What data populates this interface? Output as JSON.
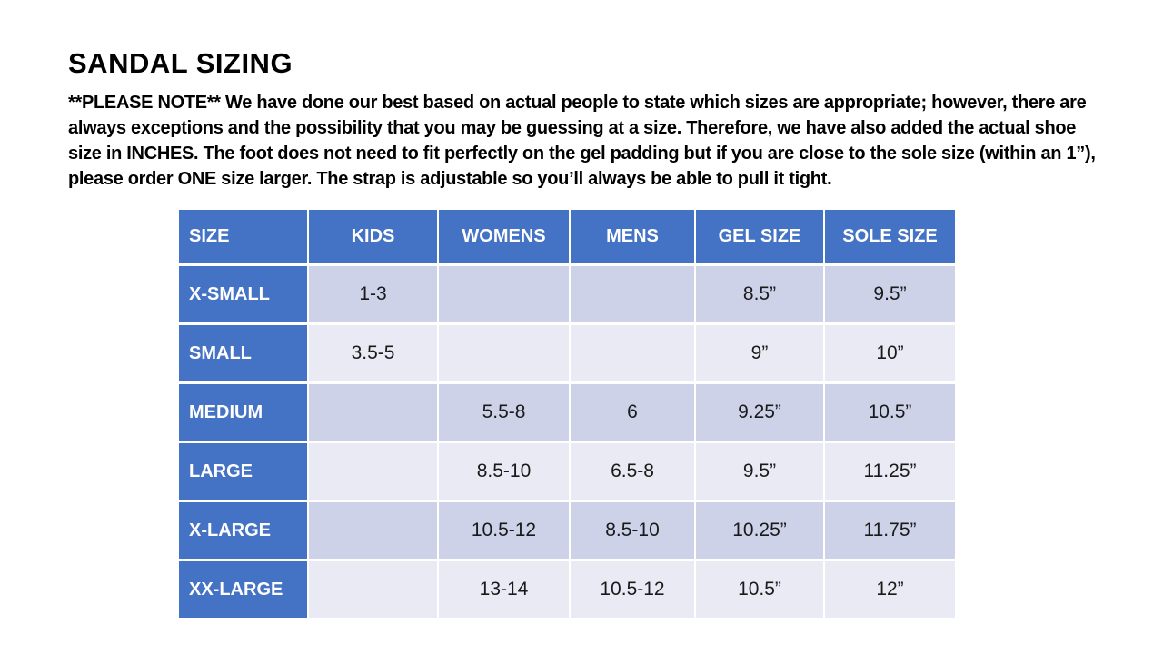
{
  "title": "SANDAL SIZING",
  "note": {
    "lines": [
      "**PLEASE NOTE**  We have done our best based on actual people to state which sizes are appropriate; however, there are",
      "always exceptions and the possibility that you may be guessing at a size.  Therefore, we have also added the actual shoe",
      "size in INCHES.  The foot does not need to fit perfectly on the gel padding but if you are close to the sole size (within an 1”),",
      "please order ONE size larger.  The strap is adjustable so you’ll always be able to pull it tight."
    ]
  },
  "table": {
    "headers": [
      "SIZE",
      "KIDS",
      "WOMENS",
      "MENS",
      "GEL SIZE",
      "SOLE SIZE"
    ],
    "rows": [
      [
        "X-SMALL",
        "1-3",
        "",
        "",
        "8.5”",
        "9.5”"
      ],
      [
        "SMALL",
        "3.5-5",
        "",
        "",
        "9”",
        "10”"
      ],
      [
        "MEDIUM",
        "",
        "5.5-8",
        "6",
        "9.25”",
        "10.5”"
      ],
      [
        "LARGE",
        "",
        "8.5-10",
        "6.5-8",
        "9.5”",
        "11.25”"
      ],
      [
        "X-LARGE",
        "",
        "10.5-12",
        "8.5-10",
        "10.25”",
        "11.75”"
      ],
      [
        "XX-LARGE",
        "",
        "13-14",
        "10.5-12",
        "10.5”",
        "12”"
      ]
    ]
  },
  "colors": {
    "header_blue": "#4472C4",
    "band_dark": "#CDD2E9",
    "band_light": "#E9EAF4",
    "separator": "#FFFFFF",
    "text": "#000000"
  }
}
